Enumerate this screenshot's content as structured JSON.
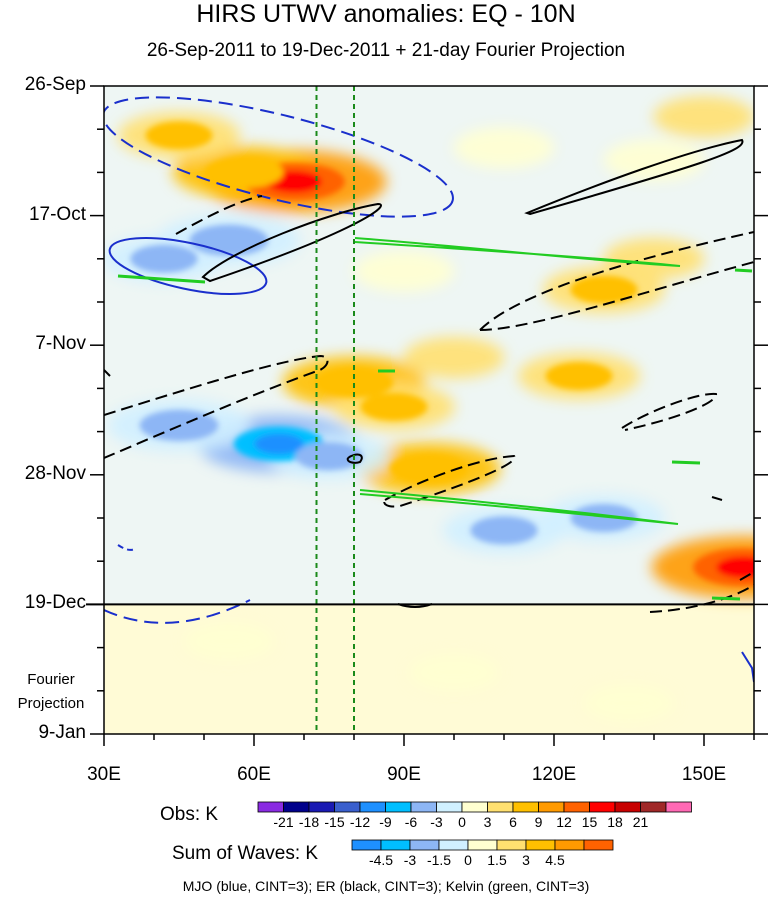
{
  "chart_data": {
    "type": "heatmap",
    "title": "HIRS UTWV anomalies: EQ - 10N",
    "subtitle": "26-Sep-2011 to 19-Dec-2011 + 21-day Fourier Projection",
    "x_ticks": [
      {
        "label": "30E",
        "value": 30
      },
      {
        "label": "60E",
        "value": 60
      },
      {
        "label": "90E",
        "value": 90
      },
      {
        "label": "120E",
        "value": 120
      },
      {
        "label": "150E",
        "value": 150
      }
    ],
    "x_range": [
      30,
      160
    ],
    "y_ticks": [
      {
        "label": "26-Sep",
        "day": 0
      },
      {
        "label": "17-Oct",
        "day": 21
      },
      {
        "label": "7-Nov",
        "day": 42
      },
      {
        "label": "28-Nov",
        "day": 63
      },
      {
        "label": "19-Dec",
        "day": 84
      },
      {
        "label": "9-Jan",
        "day": 105
      }
    ],
    "y_range_days": [
      0,
      105
    ],
    "projection_start_day": 84,
    "projection_label": "Fourier Projection",
    "reference_lines_lon": [
      72.5,
      80
    ],
    "hotspots": [
      {
        "lon": 68,
        "day": 15.5,
        "value": 15
      },
      {
        "lon": 58,
        "day": 14,
        "value": 9
      },
      {
        "lon": 45,
        "day": 8,
        "value": 6
      },
      {
        "lon": 80,
        "day": 48,
        "value": 9
      },
      {
        "lon": 88,
        "day": 52,
        "value": 6
      },
      {
        "lon": 95,
        "day": 62,
        "value": 9
      },
      {
        "lon": 130,
        "day": 33,
        "value": 6
      },
      {
        "lon": 140,
        "day": 28,
        "value": 3
      },
      {
        "lon": 125,
        "day": 47,
        "value": 6
      },
      {
        "lon": 158,
        "day": 78,
        "value": 15
      },
      {
        "lon": 100,
        "day": 44,
        "value": 3
      },
      {
        "lon": 150,
        "day": 5,
        "value": 3
      },
      {
        "lon": 55,
        "day": 25,
        "value": -9
      },
      {
        "lon": 42,
        "day": 28,
        "value": -6
      },
      {
        "lon": 65,
        "day": 58,
        "value": -12
      },
      {
        "lon": 45,
        "day": 55,
        "value": -9
      },
      {
        "lon": 75,
        "day": 60,
        "value": -6
      },
      {
        "lon": 110,
        "day": 72,
        "value": -6
      },
      {
        "lon": 130,
        "day": 70,
        "value": -6
      },
      {
        "lon": 140,
        "day": 12,
        "value": -3
      },
      {
        "lon": 110,
        "day": 10,
        "value": -3
      },
      {
        "lon": 90,
        "day": 30,
        "value": -3
      },
      {
        "lon": 100,
        "day": 95,
        "value": -1.5
      },
      {
        "lon": 55,
        "day": 90,
        "value": -1.5
      },
      {
        "lon": 135,
        "day": 100,
        "value": -1.5
      }
    ],
    "legend_obs": {
      "label": "Obs: K",
      "colors": [
        "#8a2be2",
        "#00008b",
        "#1a1ab3",
        "#3a5fcd",
        "#1e90ff",
        "#00bfff",
        "#8db6f5",
        "#d0f0ff",
        "#ffffd0",
        "#ffe070",
        "#ffc000",
        "#ff9a00",
        "#ff6200",
        "#ff0000",
        "#c80000",
        "#a02828",
        "#ff69b4"
      ],
      "tick_labels": [
        "-21",
        "-18",
        "-15",
        "-12",
        "-9",
        "-6",
        "-3",
        "0",
        "3",
        "6",
        "9",
        "12",
        "15",
        "18",
        "21"
      ]
    },
    "legend_waves": {
      "label": "Sum of Waves: K",
      "colors": [
        "#1e90ff",
        "#00bfff",
        "#8db6f5",
        "#d0f0ff",
        "#ffffd0",
        "#ffe070",
        "#ffc000",
        "#ff9a00",
        "#ff6200"
      ],
      "tick_labels": [
        "-4.5",
        "-3",
        "-1.5",
        "0",
        "1.5",
        "3",
        "4.5"
      ]
    },
    "footnote": "MJO (blue, CINT=3); ER (black, CINT=3); Kelvin (green, CINT=3)",
    "wave_colors": {
      "mjo": "#1a2fcc",
      "er": "#000000",
      "kelvin": "#22cc22",
      "ref_line": "#1a8a1a"
    }
  }
}
